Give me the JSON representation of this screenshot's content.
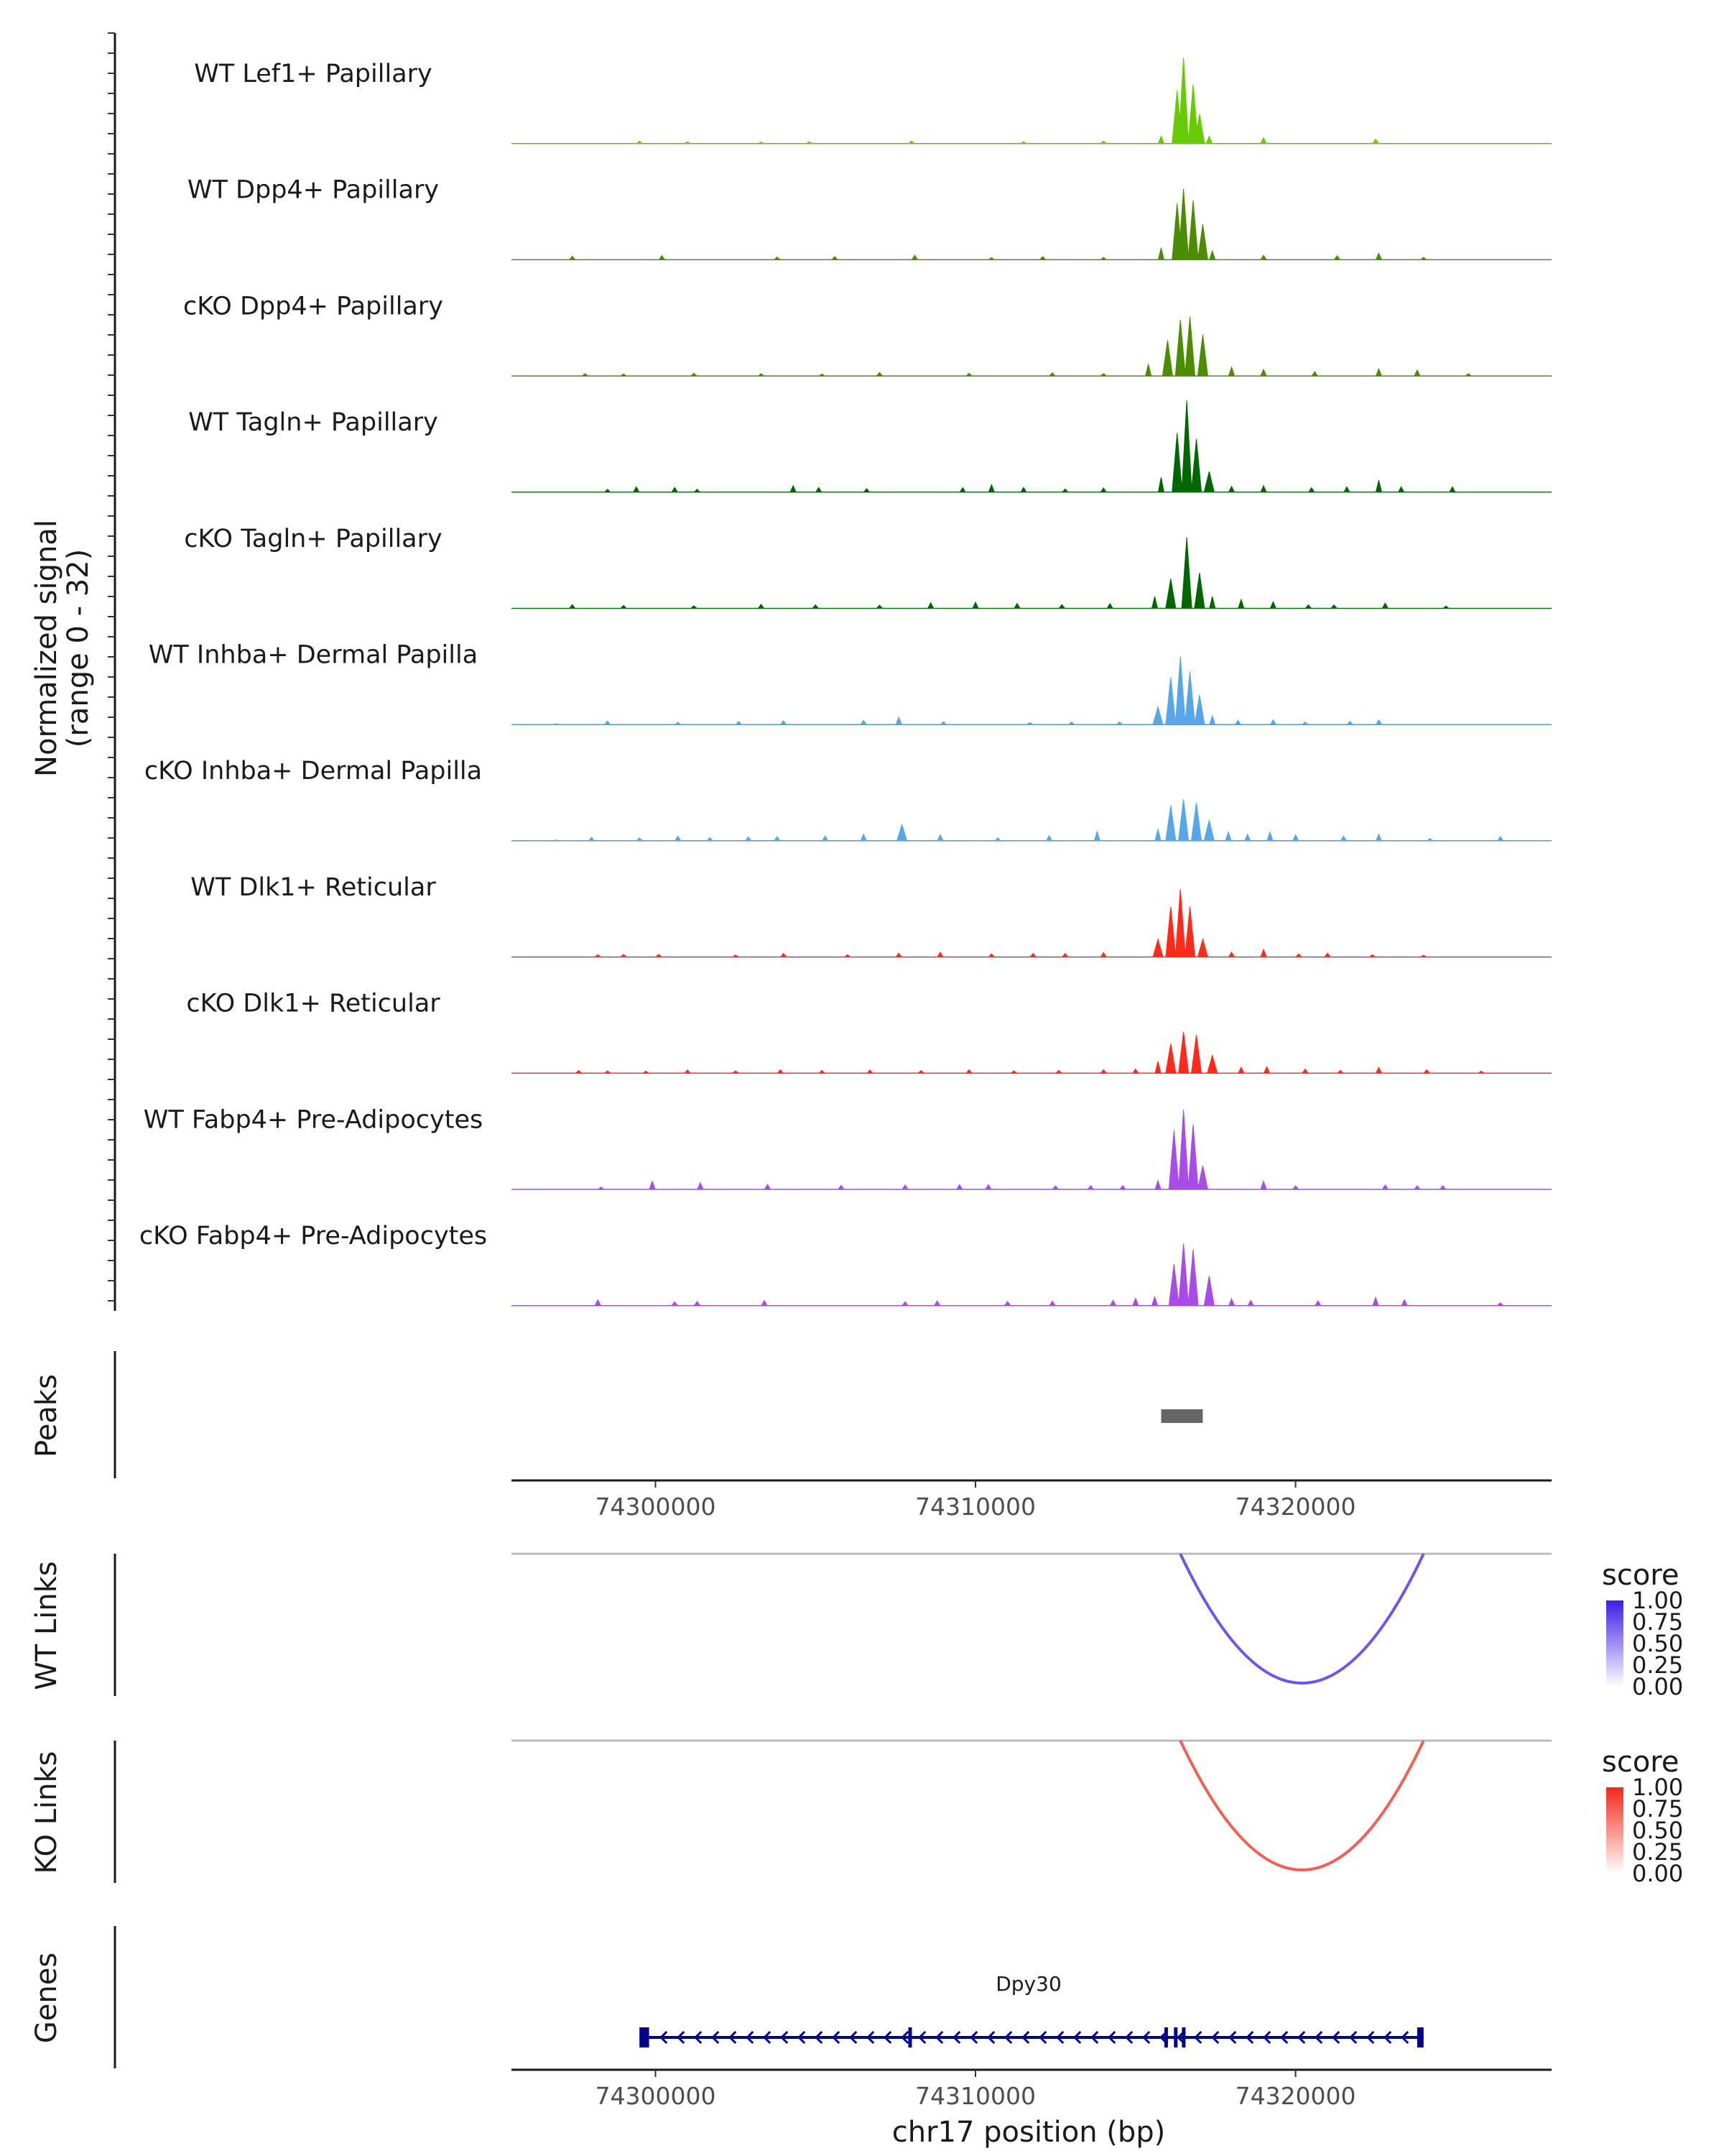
{
  "chart_data": {
    "type": "area",
    "title": "",
    "xlabel": "chr17 position (bp)",
    "xlim": [
      74295500,
      74328000
    ],
    "x_ticks": [
      {
        "value": 74300000,
        "label": "74300000"
      },
      {
        "value": 74310000,
        "label": "74310000"
      },
      {
        "value": 74320000,
        "label": "74320000"
      }
    ],
    "coverage": {
      "ylabel_line1": "Normalized signal",
      "ylabel_line2": "(range 0 - 32)",
      "ylim": [
        0,
        32
      ],
      "series": [
        {
          "name": "WT Lef1+ Papillary",
          "color": "#66CC00",
          "peak_max": 29,
          "x": [
            74299500,
            74301000,
            74303300,
            74304800,
            74308000,
            74311500,
            74314000,
            74315800,
            74316300,
            74316500,
            74316800,
            74317000,
            74317300,
            74319000,
            74322500
          ],
          "y": [
            0.8,
            0.6,
            0.5,
            0.6,
            0.9,
            0.6,
            0.8,
            2.5,
            18,
            29,
            20,
            10,
            2.5,
            2.0,
            1.5
          ]
        },
        {
          "name": "WT Dpp4+ Papillary",
          "color": "#4C8C00",
          "peak_max": 24,
          "x": [
            74297400,
            74300200,
            74303800,
            74305600,
            74308100,
            74310500,
            74312100,
            74314000,
            74315800,
            74316300,
            74316500,
            74316800,
            74317100,
            74317400,
            74319000,
            74321300,
            74322600,
            74324000
          ],
          "y": [
            1.2,
            1.4,
            0.9,
            1.1,
            1.5,
            0.7,
            1.1,
            0.8,
            4,
            19,
            24,
            20,
            12,
            3,
            1.5,
            1.3,
            2.2,
            0.8
          ]
        },
        {
          "name": "cKO Dpp4+ Papillary",
          "color": "#4C8C00",
          "peak_max": 20,
          "x": [
            74297800,
            74299000,
            74301200,
            74303300,
            74305200,
            74307000,
            74309800,
            74312400,
            74314000,
            74315400,
            74316000,
            74316400,
            74316700,
            74317100,
            74318000,
            74319000,
            74320600,
            74322600,
            74323800,
            74325400
          ],
          "y": [
            0.8,
            0.7,
            0.9,
            0.8,
            0.7,
            1.2,
            0.9,
            1.1,
            0.8,
            4,
            12,
            19,
            20,
            14,
            3,
            2.2,
            1.5,
            2.4,
            2.0,
            0.8
          ]
        },
        {
          "name": "WT Tagln+ Papillary",
          "color": "#006600",
          "peak_max": 31,
          "x": [
            74298500,
            74299400,
            74300600,
            74301300,
            74304300,
            74305100,
            74306600,
            74309600,
            74310500,
            74311500,
            74312800,
            74314000,
            74315800,
            74316300,
            74316600,
            74316900,
            74317300,
            74318000,
            74319000,
            74320500,
            74321600,
            74322600,
            74323300,
            74324900
          ],
          "y": [
            1.0,
            1.8,
            1.6,
            1.0,
            2.2,
            1.6,
            1.2,
            1.5,
            2.5,
            1.6,
            1.1,
            1.4,
            5,
            20,
            31,
            18,
            7,
            2,
            2.2,
            1.5,
            1.8,
            4,
            1.8,
            1.8
          ]
        },
        {
          "name": "cKO Tagln+ Papillary",
          "color": "#006600",
          "peak_max": 24,
          "x": [
            74297400,
            74299000,
            74301200,
            74303300,
            74305000,
            74307000,
            74308600,
            74310000,
            74311300,
            74312700,
            74314200,
            74315600,
            74316100,
            74316600,
            74317000,
            74317400,
            74318300,
            74319300,
            74320400,
            74321200,
            74322800,
            74324700
          ],
          "y": [
            1.3,
            1.0,
            0.9,
            1.4,
            1.2,
            1.1,
            1.9,
            2.1,
            1.7,
            1.3,
            1.6,
            4,
            10,
            24,
            12,
            4,
            3,
            2.2,
            1.2,
            1.2,
            1.8,
            0.8
          ]
        },
        {
          "name": "WT Inhba+ Dermal Papilla",
          "color": "#56A6E8",
          "peak_max": 23,
          "x": [
            74296900,
            74298500,
            74300700,
            74302600,
            74304000,
            74306500,
            74307600,
            74309000,
            74311700,
            74313000,
            74314500,
            74315700,
            74316100,
            74316400,
            74316700,
            74317000,
            74317400,
            74318200,
            74319300,
            74320300,
            74321700,
            74322600
          ],
          "y": [
            0.3,
            1.2,
            0.8,
            1.1,
            1.3,
            1.4,
            2.5,
            1.0,
            0.7,
            0.9,
            0.9,
            6,
            16,
            23,
            18,
            10,
            3,
            1.4,
            1.6,
            0.9,
            1.1,
            1.6
          ]
        },
        {
          "name": "cKO Inhba+ Dermal Papilla",
          "color": "#56A6E8",
          "peak_max": 14,
          "x": [
            74296900,
            74298000,
            74299500,
            74300700,
            74301700,
            74302900,
            74303800,
            74305300,
            74306500,
            74307700,
            74308900,
            74310700,
            74312300,
            74313800,
            74315700,
            74316100,
            74316500,
            74316900,
            74317300,
            74317900,
            74318500,
            74319200,
            74320000,
            74321500,
            74322600,
            74324200,
            74326400
          ],
          "y": [
            0.3,
            1.2,
            1.0,
            1.6,
            1.1,
            1.3,
            1.4,
            1.6,
            2.2,
            5.5,
            2.0,
            1.0,
            1.7,
            3.2,
            4,
            12,
            14,
            13,
            7,
            3,
            2.2,
            3.0,
            2.0,
            1.6,
            2.2,
            0.8,
            1.4
          ]
        },
        {
          "name": "WT Dlk1+ Reticular",
          "color": "#FF2A1A",
          "peak_max": 23,
          "x": [
            74298200,
            74299000,
            74300100,
            74302500,
            74304000,
            74306000,
            74307600,
            74308900,
            74310500,
            74311800,
            74312800,
            74314000,
            74315700,
            74316100,
            74316400,
            74316700,
            74317100,
            74318000,
            74319000,
            74320100,
            74321000,
            74322400,
            74324000
          ],
          "y": [
            0.8,
            0.9,
            0.9,
            0.7,
            1.2,
            0.8,
            1.3,
            1.6,
            1.1,
            1.2,
            1.2,
            1.5,
            6,
            17,
            23,
            17,
            6,
            1.6,
            2.6,
            1.1,
            1.3,
            0.8,
            0.6
          ]
        },
        {
          "name": "cKO Dlk1+ Reticular",
          "color": "#FF2A1A",
          "peak_max": 14,
          "x": [
            74297600,
            74298500,
            74299700,
            74301000,
            74302500,
            74303900,
            74305200,
            74306700,
            74308300,
            74309800,
            74311200,
            74312600,
            74314000,
            74315000,
            74315700,
            74316100,
            74316500,
            74316900,
            74317400,
            74318300,
            74319100,
            74320300,
            74321400,
            74322600,
            74324100,
            74325800
          ],
          "y": [
            0.9,
            0.8,
            0.7,
            1.1,
            0.8,
            1.2,
            1.0,
            1.1,
            0.9,
            1.2,
            0.8,
            1.0,
            1.2,
            1.4,
            4,
            10,
            14,
            13,
            6,
            2,
            2.2,
            1.4,
            1.0,
            2.0,
            1.2,
            0.7
          ]
        },
        {
          "name": "WT Fabp4+ Pre-Adipocytes",
          "color": "#A94BE8",
          "peak_max": 27,
          "x": [
            74298300,
            74299900,
            74301400,
            74303500,
            74305800,
            74307800,
            74309500,
            74310400,
            74312500,
            74313600,
            74314600,
            74315700,
            74316200,
            74316500,
            74316800,
            74317100,
            74319000,
            74320000,
            74322800,
            74323800,
            74324600
          ],
          "y": [
            0.8,
            2.8,
            2.3,
            1.7,
            1.4,
            1.5,
            1.6,
            1.6,
            1.2,
            1.3,
            1.3,
            3,
            20,
            27,
            22,
            8,
            2.8,
            1.2,
            1.5,
            1.2,
            1.3
          ]
        },
        {
          "name": "cKO Fabp4+ Pre-Adipocytes",
          "color": "#A94BE8",
          "peak_max": 21,
          "x": [
            74298200,
            74300600,
            74301300,
            74303400,
            74307800,
            74308800,
            74311000,
            74312400,
            74314300,
            74315000,
            74315600,
            74316200,
            74316500,
            74316800,
            74317300,
            74318000,
            74318600,
            74320700,
            74322500,
            74323400,
            74326400
          ],
          "y": [
            2.0,
            1.3,
            1.4,
            1.8,
            1.3,
            1.6,
            1.4,
            1.5,
            1.8,
            2.5,
            3,
            14,
            21,
            19,
            10,
            2.3,
            1.8,
            1.6,
            2.8,
            2.0,
            1.0
          ]
        }
      ]
    },
    "peaks": {
      "label": "Peaks",
      "regions": [
        {
          "start": 74315800,
          "end": 74317100
        }
      ]
    },
    "links": [
      {
        "label": "WT Links",
        "legend_title": "score",
        "color_high": "#3D1EE6",
        "color_low": "#FFFFFF",
        "legend_ticks": [
          "1.00",
          "0.75",
          "0.50",
          "0.25",
          "0.00"
        ],
        "arcs": [
          {
            "start": 74316400,
            "end": 74324000,
            "score": 0.75
          }
        ]
      },
      {
        "label": "KO Links",
        "legend_title": "score",
        "color_high": "#F0281A",
        "color_low": "#FFFFFF",
        "legend_ticks": [
          "1.00",
          "0.75",
          "0.50",
          "0.25",
          "0.00"
        ],
        "arcs": [
          {
            "start": 74316400,
            "end": 74324000,
            "score": 0.75
          }
        ]
      }
    ],
    "genes": {
      "label": "Genes",
      "color": "#00008B",
      "items": [
        {
          "name": "Dpy30",
          "start": 74299500,
          "end": 74324000,
          "strand": "-",
          "exons": [
            [
              74299500,
              74299800
            ],
            [
              74307900,
              74308000
            ],
            [
              74315900,
              74316000
            ],
            [
              74316200,
              74316300
            ],
            [
              74316450,
              74316550
            ],
            [
              74323800,
              74324000
            ]
          ]
        }
      ]
    }
  }
}
